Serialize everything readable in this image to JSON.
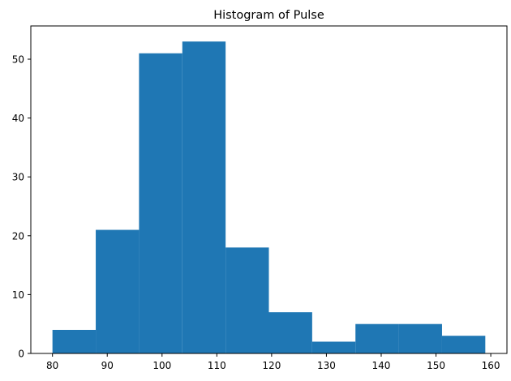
{
  "chart_data": {
    "type": "bar",
    "title": "Histogram of Pulse",
    "xlabel": "",
    "ylabel": "",
    "bins": [
      {
        "x0": 80.0,
        "x1": 87.9,
        "count": 4
      },
      {
        "x0": 87.9,
        "x1": 95.8,
        "count": 21
      },
      {
        "x0": 95.8,
        "x1": 103.7,
        "count": 51
      },
      {
        "x0": 103.7,
        "x1": 111.6,
        "count": 53
      },
      {
        "x0": 111.6,
        "x1": 119.5,
        "count": 18
      },
      {
        "x0": 119.5,
        "x1": 127.4,
        "count": 7
      },
      {
        "x0": 127.4,
        "x1": 135.3,
        "count": 2
      },
      {
        "x0": 135.3,
        "x1": 143.2,
        "count": 5
      },
      {
        "x0": 143.2,
        "x1": 151.1,
        "count": 5
      },
      {
        "x0": 151.1,
        "x1": 159.0,
        "count": 3
      }
    ],
    "xlim": [
      76.05,
      162.95
    ],
    "ylim": [
      0,
      55.65
    ],
    "xticks": [
      80,
      90,
      100,
      110,
      120,
      130,
      140,
      150,
      160
    ],
    "yticks": [
      0,
      10,
      20,
      30,
      40,
      50
    ],
    "bar_color": "#1f77b4",
    "grid": false,
    "legend": "none"
  }
}
